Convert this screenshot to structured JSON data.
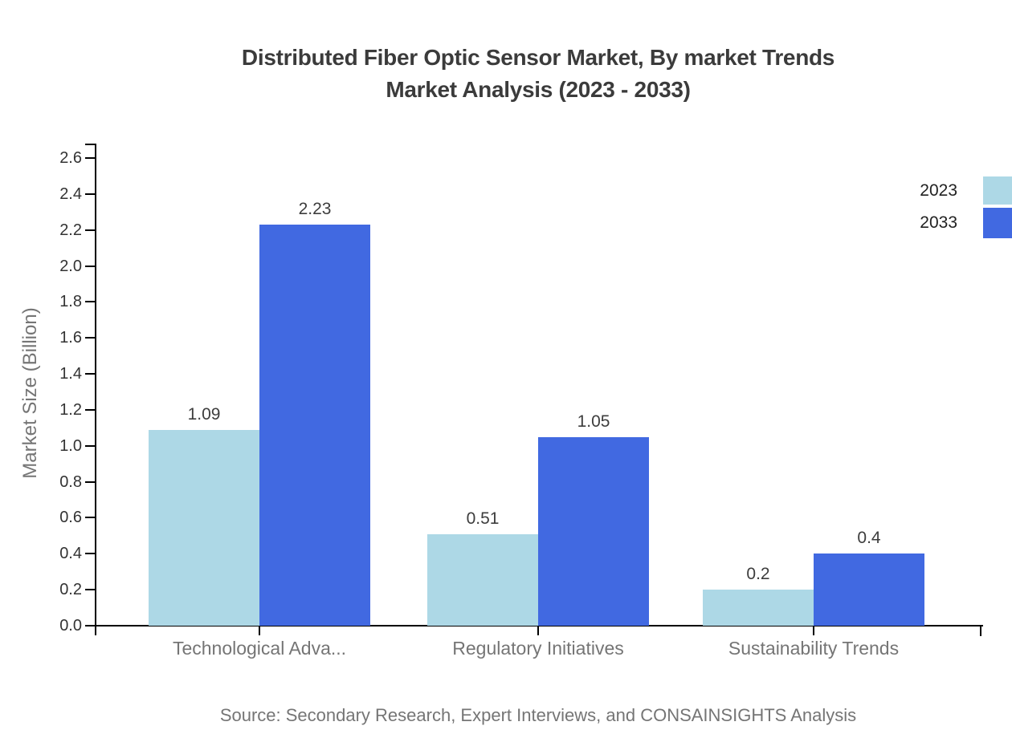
{
  "title": {
    "line1": "Distributed Fiber Optic Sensor Market, By market Trends",
    "line2": "Market Analysis (2023 - 2033)"
  },
  "source": "Source: Secondary Research, Expert Interviews, and CONSAINSIGHTS Analysis",
  "chart_data": {
    "type": "bar",
    "title": "Distributed Fiber Optic Sensor Market, By market Trends Market Analysis (2023 - 2033)",
    "categories": [
      "Technological Adva...",
      "Regulatory Initiatives",
      "Sustainability Trends"
    ],
    "series": [
      {
        "name": "2023",
        "color": "#add8e6",
        "values": [
          1.09,
          0.51,
          0.2
        ]
      },
      {
        "name": "2033",
        "color": "#4169e1",
        "values": [
          2.23,
          1.05,
          0.4
        ]
      }
    ],
    "value_labels": [
      [
        "1.09",
        "0.51",
        "0.2"
      ],
      [
        "2.23",
        "1.05",
        "0.4"
      ]
    ],
    "xlabel": "",
    "ylabel": "Market Size (Billion)",
    "ylim": [
      0,
      2.6
    ],
    "ytick_step": 0.2,
    "ytick_labels": [
      "0.0",
      "0.2",
      "0.4",
      "0.6",
      "0.8",
      "1.0",
      "1.2",
      "1.4",
      "1.6",
      "1.8",
      "2.0",
      "2.2",
      "2.4",
      "2.6"
    ],
    "grid": false,
    "legend_position": "top-right",
    "axis_color": "#000000"
  }
}
